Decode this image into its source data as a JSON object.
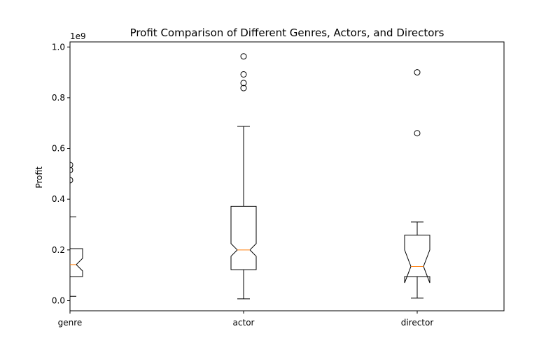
{
  "chart_data": {
    "type": "boxplot",
    "title": "Profit Comparison of Different Genres, Actors, and Directors",
    "xlabel": "",
    "ylabel": "Profit",
    "offset_label": "1e9",
    "categories": [
      "genre",
      "actor",
      "director"
    ],
    "x": [
      1,
      2,
      3
    ],
    "xlim": [
      1.0,
      3.5
    ],
    "ylim": [
      -0.04,
      1.02
    ],
    "yticks": [
      0.0,
      0.2,
      0.4,
      0.6,
      0.8,
      1.0
    ],
    "ytick_labels": [
      "0.0",
      "0.2",
      "0.4",
      "0.6",
      "0.8",
      "1.0"
    ],
    "notched": true,
    "colors": {
      "box": "#000000",
      "median": "#ff7f0e",
      "axes": "#000000",
      "background": "#ffffff"
    },
    "boxes": [
      {
        "name": "genre",
        "whisker_low": 0.017,
        "q1": 0.095,
        "notch_low": 0.117,
        "median": 0.142,
        "notch_high": 0.167,
        "q3": 0.205,
        "whisker_high": 0.33,
        "outliers": [
          0.475,
          0.515,
          0.535
        ]
      },
      {
        "name": "actor",
        "whisker_low": 0.007,
        "q1": 0.122,
        "notch_low": 0.175,
        "median": 0.2,
        "notch_high": 0.225,
        "q3": 0.372,
        "whisker_high": 0.687,
        "outliers": [
          0.838,
          0.858,
          0.892,
          0.963
        ]
      },
      {
        "name": "director",
        "whisker_low": 0.01,
        "q1": 0.095,
        "notch_low": 0.07,
        "median": 0.135,
        "notch_high": 0.2,
        "q3": 0.258,
        "whisker_high": 0.31,
        "outliers": [
          0.66,
          0.9
        ]
      }
    ]
  }
}
